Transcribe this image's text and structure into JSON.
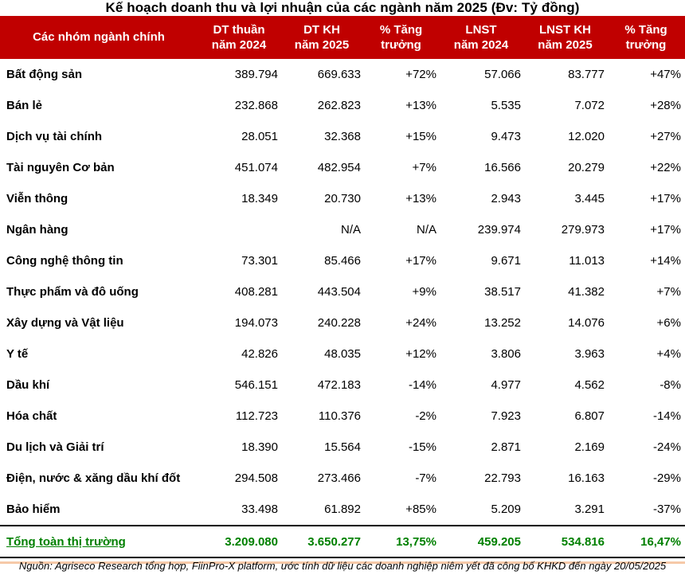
{
  "title": "Kế hoạch doanh thu và lợi nhuận của các ngành năm 2025 (Đv: Tỷ đồng)",
  "colors": {
    "header_bg": "#C00000",
    "header_text": "#FFFFFF",
    "total_text": "#008000",
    "body_text": "#000000",
    "divider": "#000000",
    "bottom_accent_line": "#F6C9A8"
  },
  "header": {
    "col_name": "Các nhóm ngành chính",
    "cols": [
      {
        "l1": "DT thuần",
        "l2": "năm 2024"
      },
      {
        "l1": "DT KH",
        "l2": "năm 2025"
      },
      {
        "l1": "% Tăng",
        "l2": "trưởng"
      },
      {
        "l1": "LNST",
        "l2": "năm 2024"
      },
      {
        "l1": "LNST KH",
        "l2": "năm 2025"
      },
      {
        "l1": "% Tăng",
        "l2": "trưởng"
      }
    ]
  },
  "rows": [
    {
      "name": "Bất động sản",
      "dt2024": "389.794",
      "dtkh2025": "669.633",
      "growth_dt": "+72%",
      "lnst2024": "57.066",
      "lnstkh2025": "83.777",
      "growth_lnst": "+47%"
    },
    {
      "name": "Bán lẻ",
      "dt2024": "232.868",
      "dtkh2025": "262.823",
      "growth_dt": "+13%",
      "lnst2024": "5.535",
      "lnstkh2025": "7.072",
      "growth_lnst": "+28%"
    },
    {
      "name": "Dịch vụ tài chính",
      "dt2024": "28.051",
      "dtkh2025": "32.368",
      "growth_dt": "+15%",
      "lnst2024": "9.473",
      "lnstkh2025": "12.020",
      "growth_lnst": "+27%"
    },
    {
      "name": "Tài nguyên Cơ bản",
      "dt2024": "451.074",
      "dtkh2025": "482.954",
      "growth_dt": "+7%",
      "lnst2024": "16.566",
      "lnstkh2025": "20.279",
      "growth_lnst": "+22%"
    },
    {
      "name": "Viễn thông",
      "dt2024": "18.349",
      "dtkh2025": "20.730",
      "growth_dt": "+13%",
      "lnst2024": "2.943",
      "lnstkh2025": "3.445",
      "growth_lnst": "+17%"
    },
    {
      "name": "Ngân hàng",
      "dt2024": "",
      "dtkh2025": "N/A",
      "growth_dt": "N/A",
      "lnst2024": "239.974",
      "lnstkh2025": "279.973",
      "growth_lnst": "+17%"
    },
    {
      "name": "Công nghệ thông tin",
      "dt2024": "73.301",
      "dtkh2025": "85.466",
      "growth_dt": "+17%",
      "lnst2024": "9.671",
      "lnstkh2025": "11.013",
      "growth_lnst": "+14%"
    },
    {
      "name": "Thực phẩm và đô uống",
      "dt2024": "408.281",
      "dtkh2025": "443.504",
      "growth_dt": "+9%",
      "lnst2024": "38.517",
      "lnstkh2025": "41.382",
      "growth_lnst": "+7%"
    },
    {
      "name": "Xây dựng và Vật liệu",
      "dt2024": "194.073",
      "dtkh2025": "240.228",
      "growth_dt": "+24%",
      "lnst2024": "13.252",
      "lnstkh2025": "14.076",
      "growth_lnst": "+6%"
    },
    {
      "name": "Y tế",
      "dt2024": "42.826",
      "dtkh2025": "48.035",
      "growth_dt": "+12%",
      "lnst2024": "3.806",
      "lnstkh2025": "3.963",
      "growth_lnst": "+4%"
    },
    {
      "name": "Dầu khí",
      "dt2024": "546.151",
      "dtkh2025": "472.183",
      "growth_dt": "-14%",
      "lnst2024": "4.977",
      "lnstkh2025": "4.562",
      "growth_lnst": "-8%"
    },
    {
      "name": "Hóa chất",
      "dt2024": "112.723",
      "dtkh2025": "110.376",
      "growth_dt": "-2%",
      "lnst2024": "7.923",
      "lnstkh2025": "6.807",
      "growth_lnst": "-14%"
    },
    {
      "name": "Du lịch và Giải trí",
      "dt2024": "18.390",
      "dtkh2025": "15.564",
      "growth_dt": "-15%",
      "lnst2024": "2.871",
      "lnstkh2025": "2.169",
      "growth_lnst": "-24%"
    },
    {
      "name": "Điện, nước & xăng dầu khí đốt",
      "dt2024": "294.508",
      "dtkh2025": "273.466",
      "growth_dt": "-7%",
      "lnst2024": "22.793",
      "lnstkh2025": "16.163",
      "growth_lnst": "-29%"
    },
    {
      "name": "Bảo hiểm",
      "dt2024": "33.498",
      "dtkh2025": "61.892",
      "growth_dt": "+85%",
      "lnst2024": "5.209",
      "lnstkh2025": "3.291",
      "growth_lnst": "-37%"
    }
  ],
  "total": {
    "name": "Tổng toàn thị trường",
    "dt2024": "3.209.080",
    "dtkh2025": "3.650.277",
    "growth_dt": "13,75%",
    "lnst2024": "459.205",
    "lnstkh2025": "534.816",
    "growth_lnst": "16,47%"
  },
  "source": "Nguồn: Agriseco Research tổng hợp, FiinPro-X platform, ước tính dữ liệu các doanh nghiệp niêm yết đã công bố KHKD đến ngày 20/05/2025",
  "chart_data": {
    "type": "table",
    "title": "Kế hoạch doanh thu và lợi nhuận của các ngành năm 2025 (Đv: Tỷ đồng)",
    "columns": [
      "Các nhóm ngành chính",
      "DT thuần năm 2024",
      "DT KH năm 2025",
      "% Tăng trưởng",
      "LNST năm 2024",
      "LNST KH năm 2025",
      "% Tăng trưởng"
    ],
    "rows": [
      [
        "Bất động sản",
        "389.794",
        "669.633",
        "+72%",
        "57.066",
        "83.777",
        "+47%"
      ],
      [
        "Bán lẻ",
        "232.868",
        "262.823",
        "+13%",
        "5.535",
        "7.072",
        "+28%"
      ],
      [
        "Dịch vụ tài chính",
        "28.051",
        "32.368",
        "+15%",
        "9.473",
        "12.020",
        "+27%"
      ],
      [
        "Tài nguyên Cơ bản",
        "451.074",
        "482.954",
        "+7%",
        "16.566",
        "20.279",
        "+22%"
      ],
      [
        "Viễn thông",
        "18.349",
        "20.730",
        "+13%",
        "2.943",
        "3.445",
        "+17%"
      ],
      [
        "Ngân hàng",
        "",
        "N/A",
        "N/A",
        "239.974",
        "279.973",
        "+17%"
      ],
      [
        "Công nghệ thông tin",
        "73.301",
        "85.466",
        "+17%",
        "9.671",
        "11.013",
        "+14%"
      ],
      [
        "Thực phẩm và đô uống",
        "408.281",
        "443.504",
        "+9%",
        "38.517",
        "41.382",
        "+7%"
      ],
      [
        "Xây dựng và Vật liệu",
        "194.073",
        "240.228",
        "+24%",
        "13.252",
        "14.076",
        "+6%"
      ],
      [
        "Y tế",
        "42.826",
        "48.035",
        "+12%",
        "3.806",
        "3.963",
        "+4%"
      ],
      [
        "Dầu khí",
        "546.151",
        "472.183",
        "-14%",
        "4.977",
        "4.562",
        "-8%"
      ],
      [
        "Hóa chất",
        "112.723",
        "110.376",
        "-2%",
        "7.923",
        "6.807",
        "-14%"
      ],
      [
        "Du lịch và Giải trí",
        "18.390",
        "15.564",
        "-15%",
        "2.871",
        "2.169",
        "-24%"
      ],
      [
        "Điện, nước & xăng dầu khí đốt",
        "294.508",
        "273.466",
        "-7%",
        "22.793",
        "16.163",
        "-29%"
      ],
      [
        "Bảo hiểm",
        "33.498",
        "61.892",
        "+85%",
        "5.209",
        "3.291",
        "-37%"
      ]
    ],
    "total_row": [
      "Tổng toàn thị trường",
      "3.209.080",
      "3.650.277",
      "13,75%",
      "459.205",
      "534.816",
      "16,47%"
    ],
    "source": "Nguồn: Agriseco Research tổng hợp, FiinPro-X platform, ước tính dữ liệu các doanh nghiệp niêm yết đã công bố KHKD đến ngày 20/05/2025"
  }
}
